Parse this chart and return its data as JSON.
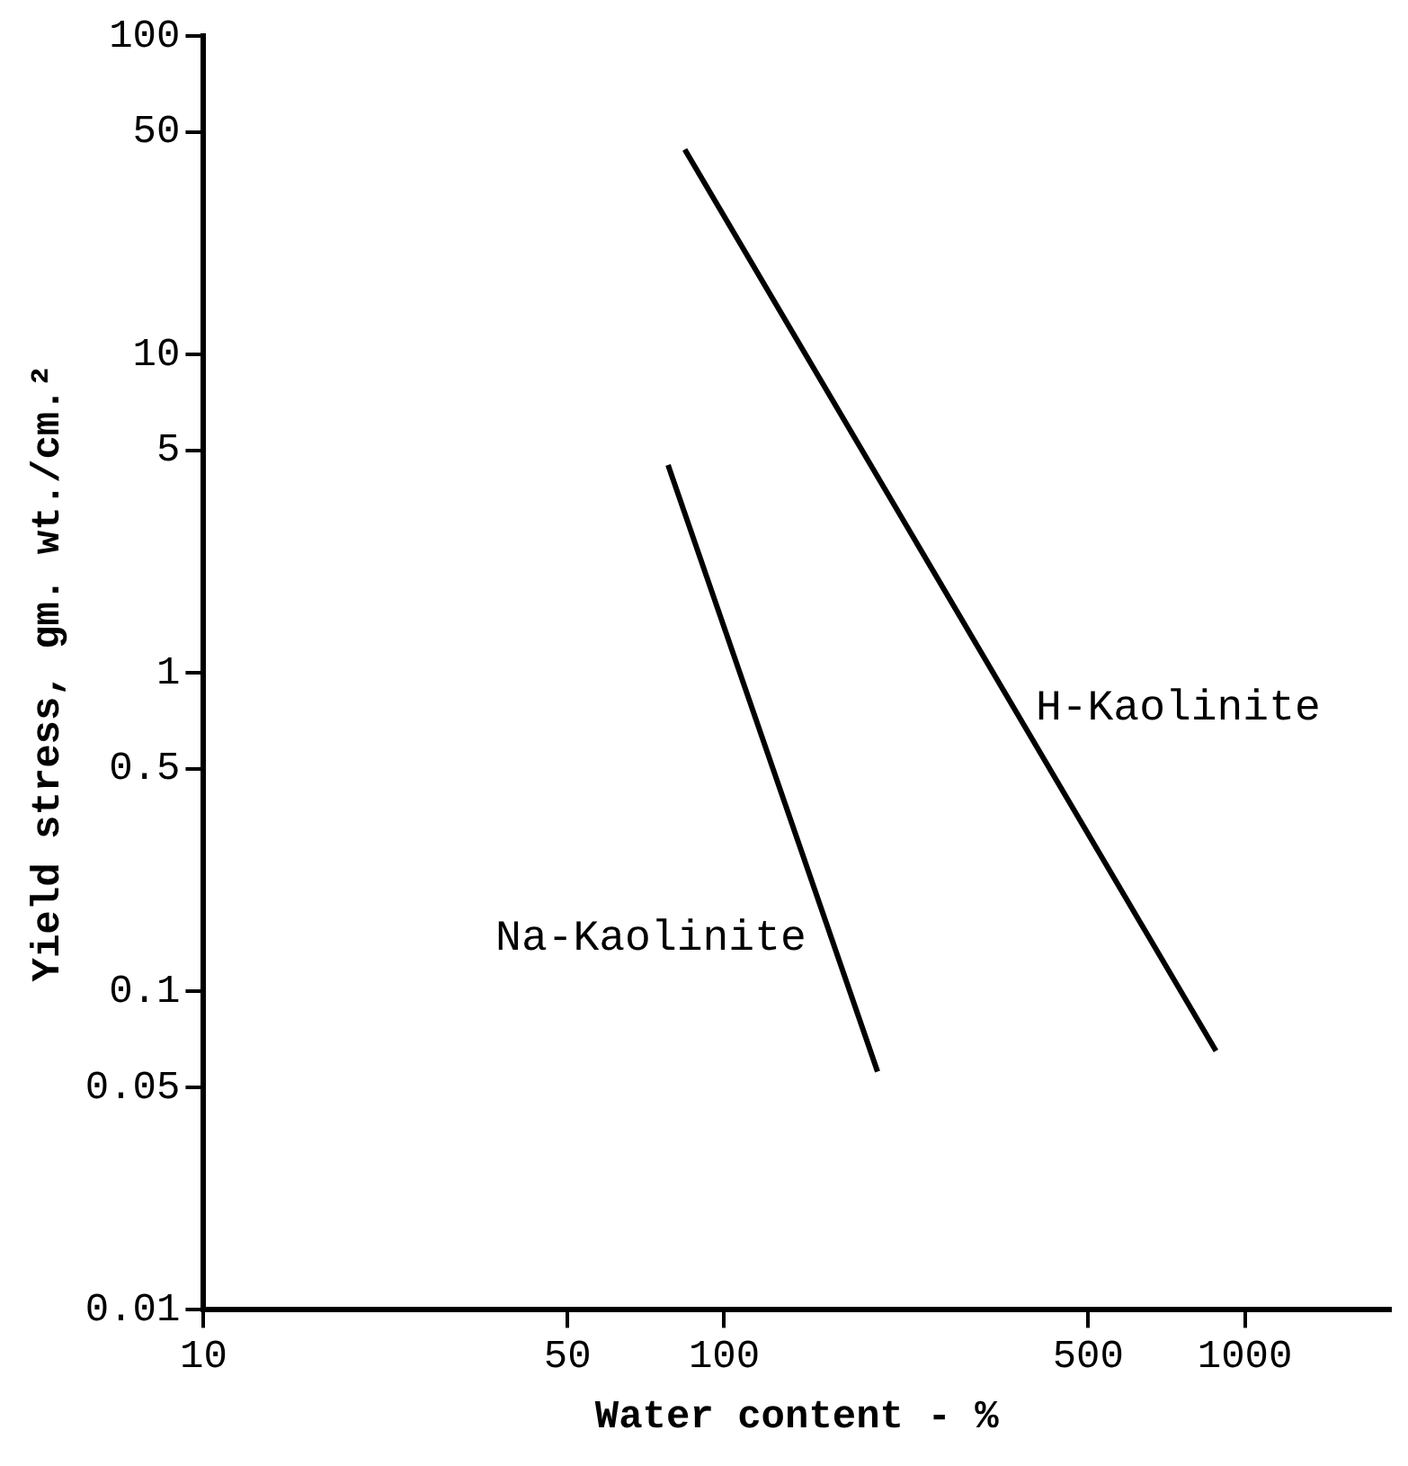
{
  "chart_data": {
    "type": "line",
    "xlabel": "Water content - %",
    "ylabel": "Yield stress, gm. wt./cm.²",
    "series": [
      {
        "name": "Na-Kaolinite",
        "color": "#000000",
        "x": [
          78,
          197
        ],
        "values": [
          4.5,
          0.056
        ]
      },
      {
        "name": "H-Kaolinite",
        "color": "#000000",
        "x": [
          84,
          880
        ],
        "values": [
          44,
          0.065
        ]
      }
    ],
    "log": "xy",
    "marker": "none",
    "line_style": "solid",
    "xlim": [
      10,
      1900
    ],
    "ylim": [
      0.01,
      100
    ],
    "xticks": [
      10,
      50,
      100,
      500,
      1000
    ],
    "yticks": [
      0.01,
      0.05,
      0.1,
      0.5,
      1,
      5,
      10,
      50,
      100
    ]
  }
}
